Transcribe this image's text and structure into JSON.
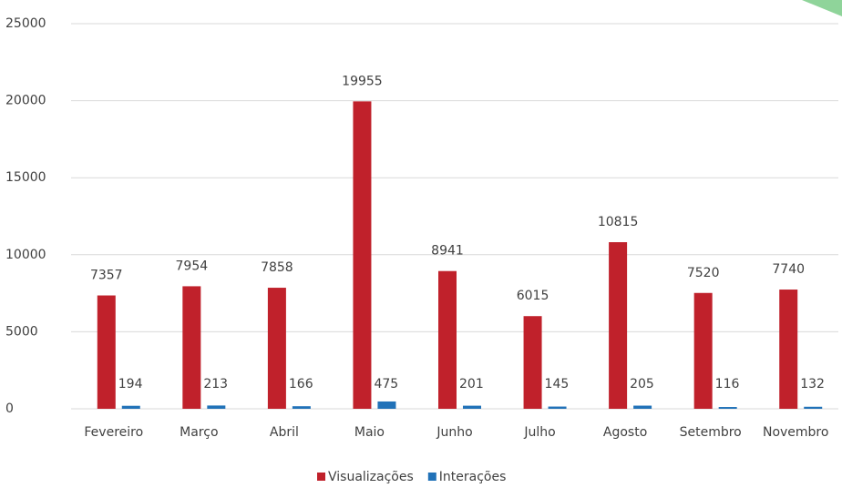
{
  "chart_data": {
    "type": "bar",
    "categories": [
      "Fevereiro",
      "Março",
      "Abril",
      "Maio",
      "Junho",
      "Julho",
      "Agosto",
      "Setembro",
      "Novembro"
    ],
    "series": [
      {
        "name": "Visualizações",
        "color": "#c0212b",
        "values": [
          7357,
          7954,
          7858,
          19955,
          8941,
          6015,
          10815,
          7520,
          7740
        ]
      },
      {
        "name": "Interações",
        "color": "#2172b8",
        "values": [
          194,
          213,
          166,
          475,
          201,
          145,
          205,
          116,
          132
        ]
      }
    ],
    "ylim": [
      0,
      25000
    ],
    "yticks": [
      0,
      5000,
      10000,
      15000,
      20000,
      25000
    ],
    "grid": true,
    "legend": "bottom"
  }
}
